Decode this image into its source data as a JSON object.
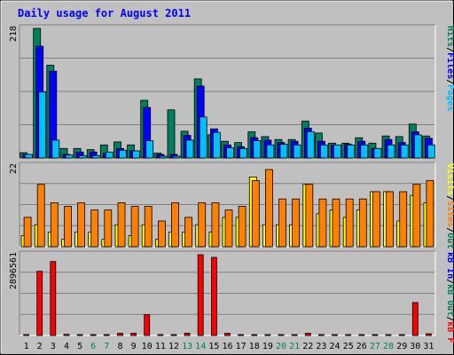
{
  "title": "Daily usage for August 2011",
  "colors": {
    "background": "#c0c0c0",
    "title": "#0000ff",
    "hits": "#00805c",
    "files": "#0000ff",
    "pages": "#00c0ff",
    "visits": "#ffff00",
    "sites": "#ff8000",
    "kb_in": "#0000ff",
    "kb_out": "#00805c",
    "kb_f": "#ff0000"
  },
  "chart_data": {
    "type": "bar",
    "categories": [
      "1",
      "2",
      "3",
      "4",
      "5",
      "6",
      "7",
      "8",
      "9",
      "10",
      "11",
      "12",
      "13",
      "14",
      "15",
      "16",
      "17",
      "18",
      "19",
      "20",
      "21",
      "22",
      "23",
      "24",
      "25",
      "26",
      "27",
      "28",
      "29",
      "30",
      "31"
    ],
    "weekend_days": [
      "6",
      "7",
      "13",
      "14",
      "20",
      "21",
      "27",
      "28"
    ],
    "panels": [
      {
        "id": "top",
        "ymax": 218,
        "ymax_label": "218",
        "right_legend": [
          {
            "text": "Hits",
            "color": "#00805c"
          },
          {
            "text": "/",
            "color": "#000000"
          },
          {
            "text": "Files",
            "color": "#0000ff"
          },
          {
            "text": "/",
            "color": "#000000"
          },
          {
            "text": "Pages",
            "color": "#00c0ff"
          }
        ],
        "series": [
          {
            "name": "Hits",
            "color": "#00805c",
            "values": [
              9,
              218,
              156,
              16,
              16,
              14,
              22,
              27,
              22,
              97,
              8,
              81,
              45,
              133,
              39,
              28,
              26,
              44,
              36,
              31,
              31,
              62,
              42,
              25,
              25,
              34,
              25,
              37,
              36,
              57,
              37
            ]
          },
          {
            "name": "Files",
            "color": "#0000ff",
            "values": [
              6,
              188,
              146,
              6,
              10,
              10,
              8,
              16,
              12,
              85,
              6,
              6,
              38,
              121,
              49,
              22,
              19,
              34,
              30,
              26,
              28,
              50,
              28,
              22,
              23,
              28,
              16,
              31,
              26,
              44,
              33
            ]
          },
          {
            "name": "Pages",
            "color": "#00c0ff",
            "values": [
              6,
              111,
              30,
              5,
              4,
              4,
              10,
              13,
              12,
              29,
              3,
              3,
              30,
              69,
              43,
              17,
              16,
              29,
              22,
              23,
              22,
              44,
              22,
              22,
              22,
              22,
              16,
              22,
              22,
              39,
              22
            ]
          }
        ]
      },
      {
        "id": "middle",
        "ymax": 22,
        "ymax_label": "22",
        "right_legend": [
          {
            "text": "Visits",
            "color": "#ffff00"
          },
          {
            "text": "/",
            "color": "#000000"
          },
          {
            "text": "Sites",
            "color": "#ff8000"
          },
          {
            "text": "/",
            "color": "#000000"
          },
          {
            "text": "Out",
            "color": "#00805c"
          }
        ],
        "series": [
          {
            "name": "Visits",
            "color": "#ffff00",
            "values": [
              3,
              6,
              4,
              2,
              4,
              4,
              2,
              6,
              3,
              6,
              2,
              4,
              4,
              6,
              4,
              8,
              8,
              19,
              6,
              6,
              6,
              17,
              9,
              10,
              8,
              10,
              15,
              15,
              7,
              14,
              12
            ]
          },
          {
            "name": "Sites",
            "color": "#ff8000",
            "values": [
              8,
              17,
              12,
              11,
              12,
              10,
              10,
              12,
              11,
              11,
              7,
              12,
              8,
              12,
              12,
              10,
              11,
              18,
              21,
              13,
              13,
              17,
              13,
              13,
              13,
              13,
              15,
              15,
              15,
              17,
              18
            ]
          }
        ]
      },
      {
        "id": "bottom",
        "ymax": 2896561,
        "ymax_label": "2896561",
        "right_legend": [
          {
            "text": "kB In",
            "color": "#0000ff"
          },
          {
            "text": "/",
            "color": "#000000"
          },
          {
            "text": "kB Out",
            "color": "#00805c"
          },
          {
            "text": "/",
            "color": "#000000"
          },
          {
            "text": "kB F",
            "color": "#ff0000"
          }
        ],
        "series": [
          {
            "name": "kB F",
            "color": "#ff0000",
            "values": [
              20000,
              2300000,
              2650000,
              40000,
              30000,
              30000,
              30000,
              80000,
              80000,
              750000,
              30000,
              30000,
              80000,
              2896561,
              2800000,
              80000,
              30000,
              30000,
              30000,
              30000,
              30000,
              80000,
              30000,
              30000,
              30000,
              30000,
              30000,
              30000,
              30000,
              1180000,
              60000
            ]
          }
        ]
      }
    ]
  }
}
